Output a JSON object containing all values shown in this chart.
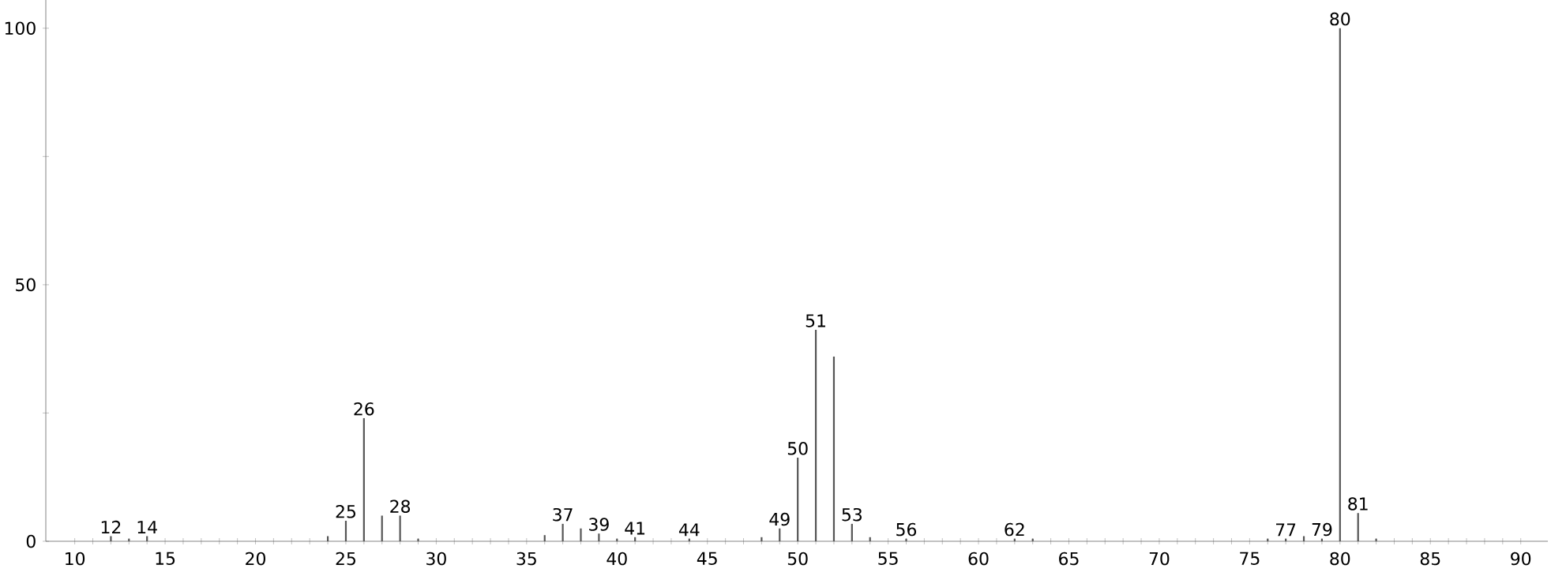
{
  "chart_data": {
    "type": "bar",
    "color": "#555555",
    "x": [
      12,
      13,
      14,
      24,
      25,
      26,
      27,
      28,
      29,
      36,
      37,
      38,
      39,
      40,
      41,
      44,
      48,
      49,
      50,
      51,
      52,
      53,
      54,
      56,
      62,
      63,
      76,
      77,
      78,
      79,
      80,
      81,
      82
    ],
    "values": [
      1,
      0.5,
      1,
      1,
      4,
      24,
      5,
      5,
      0.5,
      1.2,
      3.4,
      2.5,
      1.5,
      0.5,
      0.8,
      0.5,
      0.8,
      2.5,
      16.3,
      41.2,
      36,
      3.4,
      0.8,
      0.5,
      0.5,
      0.5,
      0.5,
      0.5,
      1,
      0.5,
      100,
      5.5,
      0.5
    ],
    "xlim": [
      8.4,
      91.5
    ],
    "ylim": [
      0,
      105.5
    ],
    "xticks": [
      10,
      {
        "value": 11,
        "label": null
      },
      {
        "value": 12,
        "label": null
      },
      {
        "value": 13,
        "label": null
      },
      {
        "value": 14,
        "label": null
      },
      15,
      {
        "value": 16,
        "label": null
      },
      {
        "value": 17,
        "label": null
      },
      {
        "value": 18,
        "label": null
      },
      {
        "value": 19,
        "label": null
      },
      20,
      {
        "value": 21,
        "label": null
      },
      {
        "value": 22,
        "label": null
      },
      {
        "value": 23,
        "label": null
      },
      {
        "value": 24,
        "label": null
      },
      25,
      {
        "value": 26,
        "label": null
      },
      {
        "value": 27,
        "label": null
      },
      {
        "value": 28,
        "label": null
      },
      {
        "value": 29,
        "label": null
      },
      30,
      {
        "value": 31,
        "label": null
      },
      {
        "value": 32,
        "label": null
      },
      {
        "value": 33,
        "label": null
      },
      {
        "value": 34,
        "label": null
      },
      35,
      {
        "value": 36,
        "label": null
      },
      {
        "value": 37,
        "label": null
      },
      {
        "value": 38,
        "label": null
      },
      {
        "value": 39,
        "label": null
      },
      40,
      {
        "value": 41,
        "label": null
      },
      {
        "value": 42,
        "label": null
      },
      {
        "value": 43,
        "label": null
      },
      {
        "value": 44,
        "label": null
      },
      45,
      {
        "value": 46,
        "label": null
      },
      {
        "value": 47,
        "label": null
      },
      {
        "value": 48,
        "label": null
      },
      {
        "value": 49,
        "label": null
      },
      50,
      {
        "value": 51,
        "label": null
      },
      {
        "value": 52,
        "label": null
      },
      {
        "value": 53,
        "label": null
      },
      {
        "value": 54,
        "label": null
      },
      55,
      {
        "value": 56,
        "label": null
      },
      {
        "value": 57,
        "label": null
      },
      {
        "value": 58,
        "label": null
      },
      {
        "value": 59,
        "label": null
      },
      60,
      {
        "value": 61,
        "label": null
      },
      {
        "value": 62,
        "label": null
      },
      {
        "value": 63,
        "label": null
      },
      {
        "value": 64,
        "label": null
      },
      65,
      {
        "value": 66,
        "label": null
      },
      {
        "value": 67,
        "label": null
      },
      {
        "value": 68,
        "label": null
      },
      {
        "value": 69,
        "label": null
      },
      70,
      {
        "value": 71,
        "label": null
      },
      {
        "value": 72,
        "label": null
      },
      {
        "value": 73,
        "label": null
      },
      {
        "value": 74,
        "label": null
      },
      75,
      {
        "value": 76,
        "label": null
      },
      {
        "value": 77,
        "label": null
      },
      {
        "value": 78,
        "label": null
      },
      {
        "value": 79,
        "label": null
      },
      80,
      {
        "value": 81,
        "label": null
      },
      {
        "value": 82,
        "label": null
      },
      {
        "value": 83,
        "label": null
      },
      {
        "value": 84,
        "label": null
      },
      85,
      {
        "value": 86,
        "label": null
      },
      {
        "value": 87,
        "label": null
      },
      {
        "value": 88,
        "label": null
      },
      {
        "value": 89,
        "label": null
      },
      90
    ],
    "yticks": [
      0,
      {
        "value": 25,
        "label": null
      },
      50,
      {
        "value": 75,
        "label": null
      },
      100
    ],
    "annotations": [
      {
        "text": "12",
        "x": 12,
        "y": 1
      },
      {
        "text": "14",
        "x": 14,
        "y": 1
      },
      {
        "text": "25",
        "x": 25,
        "y": 4
      },
      {
        "text": "26",
        "x": 26,
        "y": 24
      },
      {
        "text": "28",
        "x": 28,
        "y": 5
      },
      {
        "text": "37",
        "x": 37,
        "y": 3.4
      },
      {
        "text": "39",
        "x": 39,
        "y": 1.5
      },
      {
        "text": "41",
        "x": 41,
        "y": 0.8
      },
      {
        "text": "44",
        "x": 44,
        "y": 0.5
      },
      {
        "text": "49",
        "x": 49,
        "y": 2.5
      },
      {
        "text": "50",
        "x": 50,
        "y": 16.3
      },
      {
        "text": "51",
        "x": 51,
        "y": 41.2
      },
      {
        "text": "53",
        "x": 53,
        "y": 3.4
      },
      {
        "text": "56",
        "x": 56,
        "y": 0.5
      },
      {
        "text": "62",
        "x": 62,
        "y": 0.5
      },
      {
        "text": "77",
        "x": 77,
        "y": 0.5
      },
      {
        "text": "79",
        "x": 79,
        "y": 0.5
      },
      {
        "text": "80",
        "x": 80,
        "y": 100
      },
      {
        "text": "81",
        "x": 81,
        "y": 5.5
      }
    ]
  }
}
